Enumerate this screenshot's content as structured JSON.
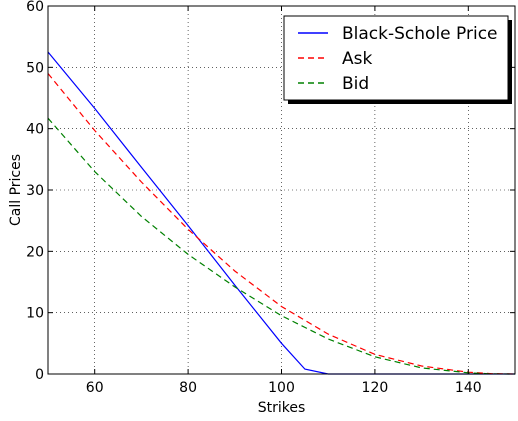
{
  "chart_data": {
    "type": "line",
    "title": "",
    "xlabel": "Strikes",
    "ylabel": "Call Prices",
    "xlim": [
      50,
      150
    ],
    "ylim": [
      0,
      60
    ],
    "xticks": [
      60,
      80,
      100,
      120,
      140
    ],
    "yticks": [
      0,
      10,
      20,
      30,
      40,
      50,
      60
    ],
    "grid": true,
    "legend_position": "top-right",
    "series": [
      {
        "name": "Black-Schole Price",
        "color": "#0000ff",
        "style": "solid",
        "x": [
          50,
          60,
          70,
          80,
          90,
          100,
          105,
          110,
          120,
          130,
          140,
          150
        ],
        "y": [
          52.5,
          43.3,
          33.7,
          24.2,
          14.5,
          5.0,
          0.8,
          0.0,
          0.0,
          0.0,
          0.0,
          0.0
        ]
      },
      {
        "name": "Ask",
        "color": "#ff0000",
        "style": "dashed",
        "x": [
          50,
          60,
          70,
          80,
          90,
          100,
          110,
          120,
          130,
          140,
          145,
          150
        ],
        "y": [
          49.0,
          39.7,
          31.3,
          23.6,
          16.8,
          11.0,
          6.5,
          3.2,
          1.3,
          0.3,
          0.05,
          0.0
        ]
      },
      {
        "name": "Bid",
        "color": "#008000",
        "style": "dashed",
        "x": [
          50,
          60,
          70,
          80,
          90,
          100,
          110,
          120,
          130,
          140,
          145,
          150
        ],
        "y": [
          41.7,
          33.0,
          25.7,
          19.5,
          14.2,
          9.5,
          5.7,
          2.8,
          1.0,
          0.2,
          0.02,
          0.0
        ]
      }
    ]
  }
}
